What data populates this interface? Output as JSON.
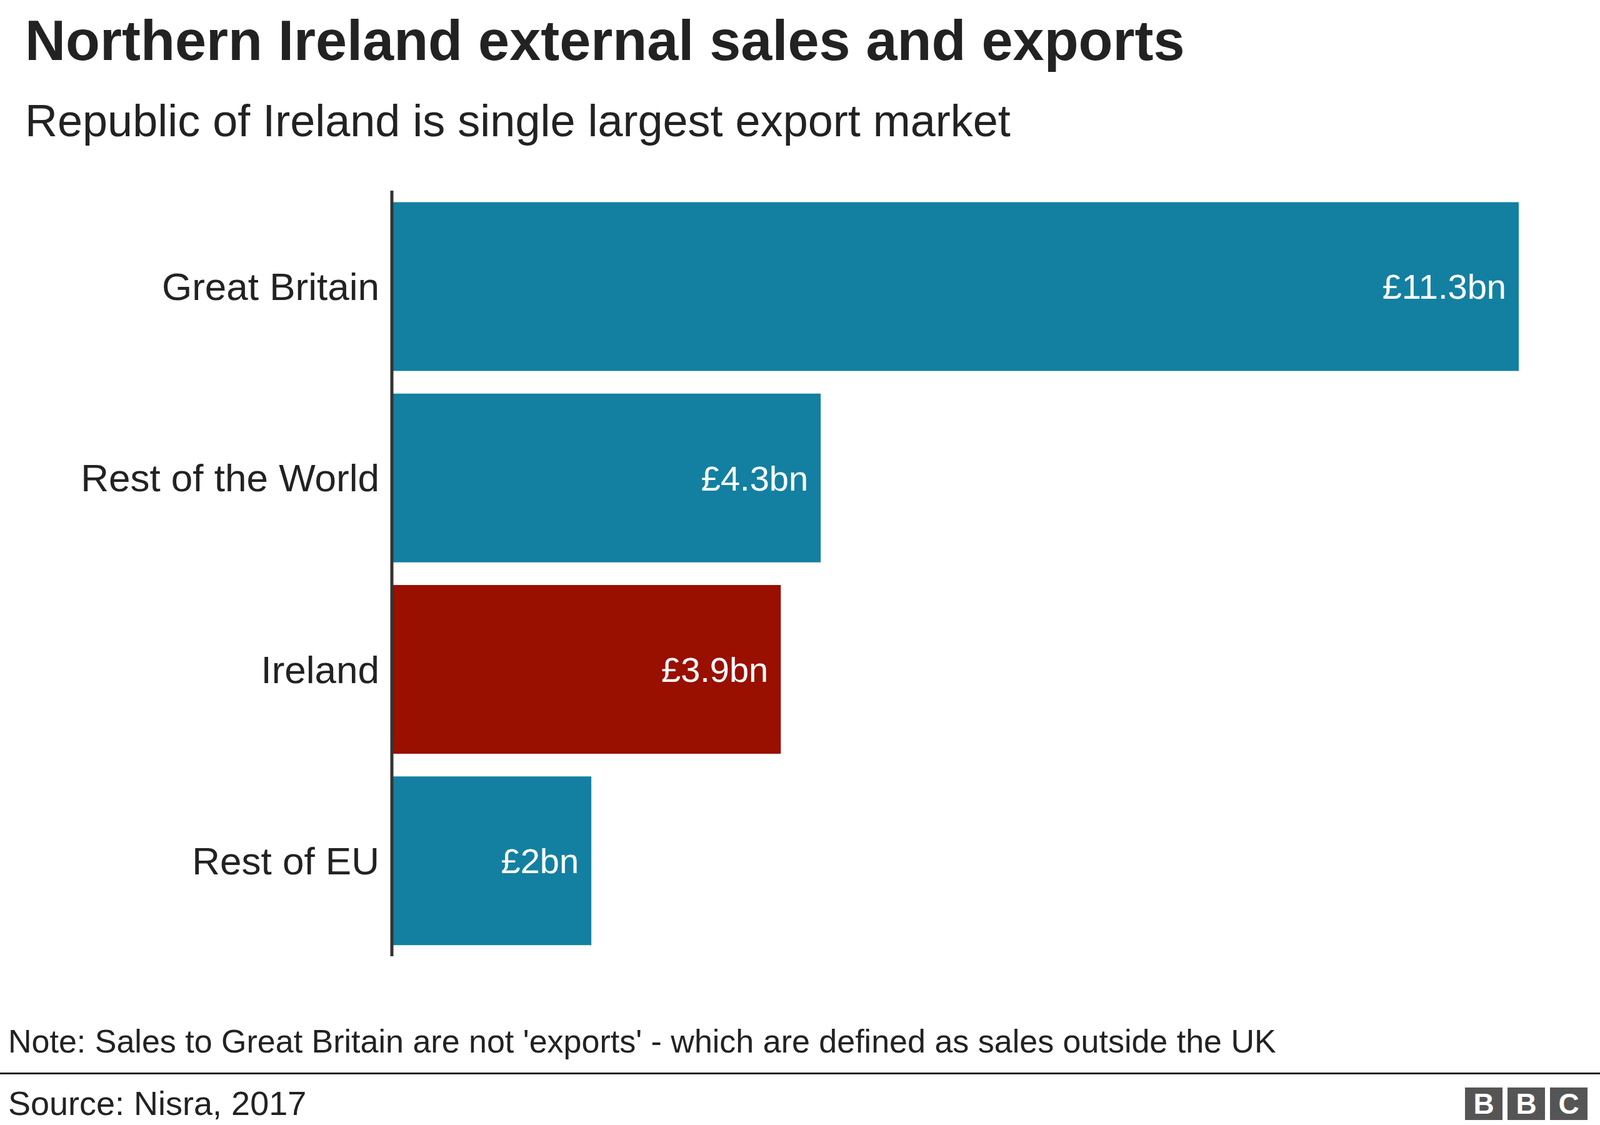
{
  "chart_data": {
    "type": "bar",
    "title": "Northern Ireland external sales and exports",
    "subtitle": "Republic of Ireland is single largest export market",
    "categories": [
      "Great Britain",
      "Rest of the World",
      "Ireland",
      "Rest of EU"
    ],
    "values": [
      11.3,
      4.3,
      3.9,
      2
    ],
    "value_labels": [
      "£11.3bn",
      "£4.3bn",
      "£3.9bn",
      "£2bn"
    ],
    "colors": [
      "#1380a1",
      "#1380a1",
      "#990f00",
      "#1380a1"
    ],
    "orientation": "horizontal",
    "data_labels": true,
    "tick_labels": "y",
    "grid": false,
    "xlim": [
      0,
      11.3
    ],
    "note": "Note: Sales to Great Britain are not 'exports' - which are defined as sales outside the UK",
    "source": "Source: Nisra, 2017",
    "logo": "BBC"
  }
}
